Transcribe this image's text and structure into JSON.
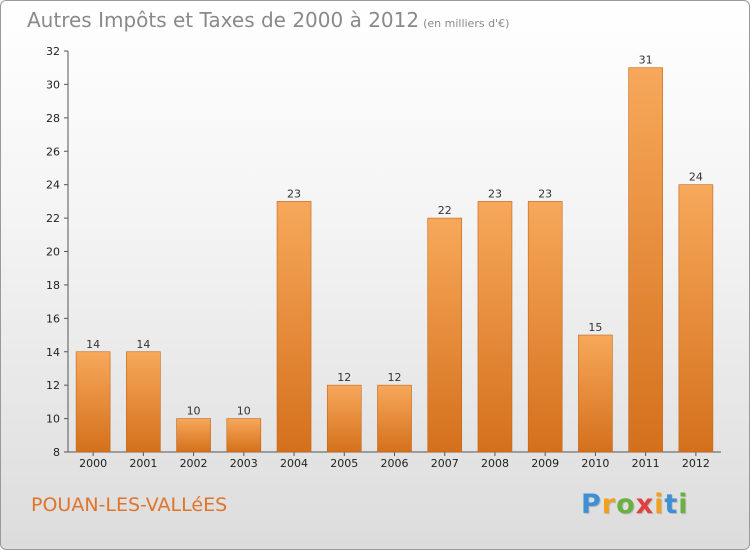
{
  "header": {
    "title": "Autres Impôts et Taxes de 2000 à 2012",
    "unit": "(en milliers d'€)"
  },
  "footer": {
    "commune": "POUAN-LES-VALLéES",
    "logo_letters": [
      "P",
      "r",
      "o",
      "x",
      "i",
      "t",
      "i"
    ],
    "logo_colors": [
      "#3f8fd4",
      "#f0a020",
      "#6ab040",
      "#e04040",
      "#f0a020",
      "#3f8fd4",
      "#6ab040"
    ]
  },
  "chart_data": {
    "type": "bar",
    "title": "Autres Impôts et Taxes de 2000 à 2012",
    "subtitle": "(en milliers d'€)",
    "xlabel": "",
    "ylabel": "",
    "categories": [
      "2000",
      "2001",
      "2002",
      "2003",
      "2004",
      "2005",
      "2006",
      "2007",
      "2008",
      "2009",
      "2010",
      "2011",
      "2012"
    ],
    "values": [
      14,
      14,
      10,
      10,
      23,
      12,
      12,
      22,
      23,
      23,
      15,
      31,
      24
    ],
    "ylim": [
      8,
      32
    ],
    "yticks": [
      8,
      10,
      12,
      14,
      16,
      18,
      20,
      22,
      24,
      26,
      28,
      30,
      32
    ],
    "grid": false,
    "bar_color": "#f08a30",
    "bar_color_dark": "#d06d1a"
  }
}
